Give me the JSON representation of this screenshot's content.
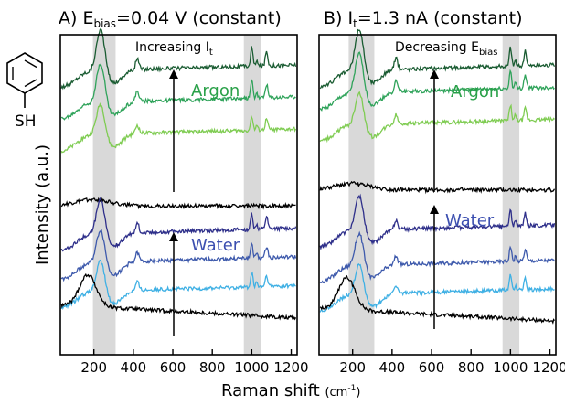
{
  "colors": {
    "argon_dark": "#1a5c32",
    "argon_mid": "#2fa35a",
    "argon_light": "#7fcc52",
    "black": "#000000",
    "water_dark": "#2e2f8a",
    "water_mid": "#3e5aac",
    "water_light": "#3fb0e4",
    "argon_label": "#2aa149",
    "water_label": "#3c4fb0",
    "band": "#d9d9d9"
  },
  "molecule": {
    "label": "SH"
  },
  "axes": {
    "ylabel": "Intensity (a.u.)",
    "xlabel_main": "Raman shift",
    "xlabel_unit": "cm",
    "xlabel_exp": "-1",
    "ticks": [
      "200",
      "400",
      "600",
      "800",
      "1000",
      "1200"
    ]
  },
  "chart_data": [
    {
      "type": "line",
      "title_prefix": "A) E",
      "title_sub": "bias",
      "title_suffix": "=0.04 V (constant)",
      "arrow_label": "Increasing I",
      "arrow_label_sub": "t",
      "group_labels": {
        "argon": "Argon",
        "water": "Water"
      },
      "x_range": [
        30,
        1230
      ],
      "highlight_bands": [
        [
          195,
          310
        ],
        [
          960,
          1045
        ]
      ],
      "series": [
        {
          "color_key": "argon_dark",
          "offset": 0.835,
          "amp": 1.0
        },
        {
          "color_key": "argon_mid",
          "offset": 0.735,
          "amp": 0.95
        },
        {
          "color_key": "argon_light",
          "offset": 0.635,
          "amp": 0.75
        },
        {
          "color_key": "black",
          "offset": 0.465,
          "amp": 0.25
        },
        {
          "color_key": "water_dark",
          "offset": 0.325,
          "amp": 0.85
        },
        {
          "color_key": "water_mid",
          "offset": 0.235,
          "amp": 0.8
        },
        {
          "color_key": "water_light",
          "offset": 0.145,
          "amp": 0.75
        },
        {
          "color_key": "black",
          "offset": 0.115,
          "amp": 0.6
        }
      ]
    },
    {
      "type": "line",
      "title_prefix": "B) I",
      "title_sub": "t",
      "title_suffix": "=1.3 nA (constant)",
      "arrow_label": "Decreasing E",
      "arrow_label_sub": "bias",
      "group_labels": {
        "argon": "Argon",
        "water": "Water"
      },
      "x_range": [
        30,
        1230
      ],
      "highlight_bands": [
        [
          180,
          310
        ],
        [
          960,
          1045
        ]
      ],
      "series": [
        {
          "color_key": "argon_dark",
          "offset": 0.835,
          "amp": 1.0
        },
        {
          "color_key": "argon_mid",
          "offset": 0.765,
          "amp": 0.95
        },
        {
          "color_key": "argon_light",
          "offset": 0.665,
          "amp": 0.8
        },
        {
          "color_key": "black",
          "offset": 0.515,
          "amp": 0.1
        },
        {
          "color_key": "water_dark",
          "offset": 0.335,
          "amp": 0.85
        },
        {
          "color_key": "water_mid",
          "offset": 0.225,
          "amp": 0.8
        },
        {
          "color_key": "water_light",
          "offset": 0.135,
          "amp": 0.75
        },
        {
          "color_key": "black",
          "offset": 0.105,
          "amp": 0.6
        }
      ]
    }
  ]
}
